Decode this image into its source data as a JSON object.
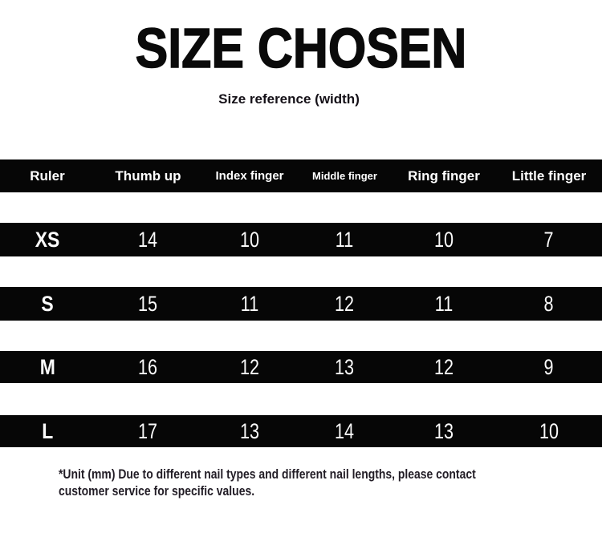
{
  "page": {
    "title": "SIZE CHOSEN",
    "subtitle": "Size reference (width)",
    "footer_line1": "*Unit (mm) Due to different nail types and different nail lengths, please contact",
    "footer_line2": "customer service for specific values."
  },
  "table": {
    "headers": [
      "Ruler",
      "Thumb up",
      "Index finger",
      "Middle finger",
      "Ring finger",
      "Little finger"
    ],
    "rows": [
      {
        "label": "XS",
        "values": [
          "14",
          "10",
          "11",
          "10",
          "7"
        ]
      },
      {
        "label": "S",
        "values": [
          "15",
          "11",
          "12",
          "11",
          "8"
        ]
      },
      {
        "label": "M",
        "values": [
          "16",
          "12",
          "13",
          "12",
          "9"
        ]
      },
      {
        "label": "L",
        "values": [
          "17",
          "13",
          "14",
          "13",
          "10"
        ]
      }
    ]
  },
  "colors": {
    "bar_background": "#060606",
    "bar_text": "#ffffff",
    "title_text": "#0a0a0a",
    "footnote_text": "#221d26",
    "page_background": "#ffffff"
  },
  "chart_data": {
    "type": "table",
    "title": "SIZE CHOSEN",
    "subtitle": "Size reference (width)",
    "unit": "mm",
    "columns": [
      "Ruler",
      "Thumb up",
      "Index finger",
      "Middle finger",
      "Ring finger",
      "Little finger"
    ],
    "rows": [
      [
        "XS",
        14,
        10,
        11,
        10,
        7
      ],
      [
        "S",
        15,
        11,
        12,
        11,
        8
      ],
      [
        "M",
        16,
        12,
        13,
        12,
        9
      ],
      [
        "L",
        17,
        13,
        14,
        13,
        10
      ]
    ],
    "note": "*Unit (mm) Due to different nail types and different nail lengths, please contact customer service for specific values."
  }
}
